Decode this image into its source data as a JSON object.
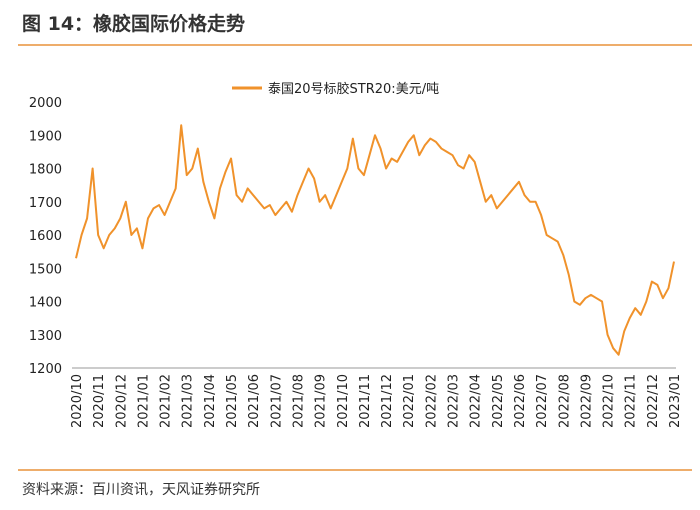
{
  "page_title": "图 14：橡胶国际价格走势",
  "source": "资料来源：百川资讯，天风证券研究所",
  "chart_data": {
    "type": "line",
    "categories": [
      "2020/10",
      null,
      null,
      null,
      "2020/11",
      null,
      null,
      null,
      "2020/12",
      null,
      null,
      null,
      "2021/01",
      null,
      null,
      null,
      "2021/02",
      null,
      null,
      null,
      "2021/03",
      null,
      null,
      null,
      "2021/04",
      null,
      null,
      null,
      "2021/05",
      null,
      null,
      null,
      "2021/06",
      null,
      null,
      null,
      "2021/07",
      null,
      null,
      null,
      "2021/08",
      null,
      null,
      null,
      "2021/09",
      null,
      null,
      null,
      "2021/10",
      null,
      null,
      null,
      "2021/11",
      null,
      null,
      null,
      "2021/12",
      null,
      null,
      null,
      "2022/01",
      null,
      null,
      null,
      "2022/02",
      null,
      null,
      null,
      "2022/03",
      null,
      null,
      null,
      "2022/04",
      null,
      null,
      null,
      "2022/05",
      null,
      null,
      null,
      "2022/06",
      null,
      null,
      null,
      "2022/07",
      null,
      null,
      null,
      "2022/08",
      null,
      null,
      null,
      "2022/09",
      null,
      null,
      null,
      "2022/10",
      null,
      null,
      null,
      "2022/11",
      null,
      null,
      null,
      "2022/12",
      null,
      null,
      null,
      "2023/01"
    ],
    "series": [
      {
        "name": "泰国20号标胶STR20:美元/吨",
        "color": "#f0922b",
        "values": [
          1530,
          1600,
          1650,
          1800,
          1600,
          1560,
          1600,
          1620,
          1650,
          1700,
          1600,
          1620,
          1560,
          1650,
          1680,
          1690,
          1660,
          1700,
          1740,
          1930,
          1780,
          1800,
          1860,
          1760,
          1700,
          1650,
          1740,
          1790,
          1830,
          1720,
          1700,
          1740,
          1720,
          1700,
          1680,
          1690,
          1660,
          1680,
          1700,
          1670,
          1720,
          1760,
          1800,
          1770,
          1700,
          1720,
          1680,
          1720,
          1760,
          1800,
          1890,
          1800,
          1780,
          1840,
          1900,
          1860,
          1800,
          1830,
          1820,
          1850,
          1880,
          1900,
          1840,
          1870,
          1890,
          1880,
          1860,
          1850,
          1840,
          1810,
          1800,
          1840,
          1820,
          1760,
          1700,
          1720,
          1680,
          1700,
          1720,
          1740,
          1760,
          1720,
          1700,
          1700,
          1660,
          1600,
          1590,
          1580,
          1540,
          1480,
          1400,
          1390,
          1410,
          1420,
          1410,
          1400,
          1300,
          1260,
          1240,
          1310,
          1350,
          1380,
          1360,
          1400,
          1460,
          1450,
          1410,
          1440,
          1520
        ]
      }
    ],
    "ylim": [
      1200,
      2000
    ],
    "yticks": [
      1200,
      1300,
      1400,
      1500,
      1600,
      1700,
      1800,
      1900,
      2000
    ],
    "legend": "top"
  }
}
